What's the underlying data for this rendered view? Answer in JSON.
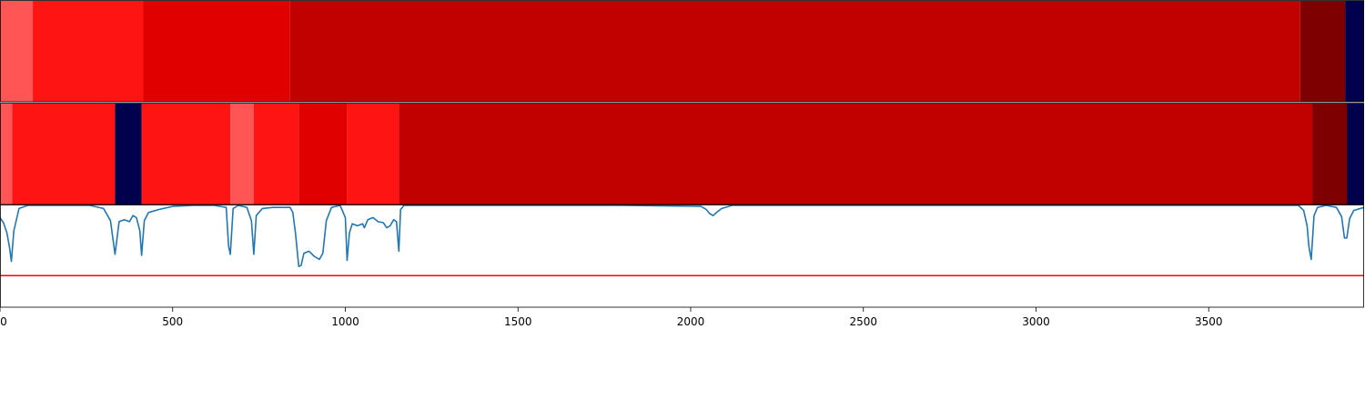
{
  "chart_data": [
    {
      "type": "heatmap",
      "xlim": [
        0,
        3950
      ],
      "segments": [
        {
          "start": 0,
          "end": 95,
          "color": "#ff5555"
        },
        {
          "start": 95,
          "end": 415,
          "color": "#ff1414"
        },
        {
          "start": 415,
          "end": 840,
          "color": "#e00000"
        },
        {
          "start": 840,
          "end": 3765,
          "color": "#c10000"
        },
        {
          "start": 3765,
          "end": 3895,
          "color": "#7f0000"
        },
        {
          "start": 3895,
          "end": 3950,
          "color": "#00004d"
        }
      ]
    },
    {
      "type": "heatmap",
      "xlim": [
        0,
        3950
      ],
      "segments": [
        {
          "start": 0,
          "end": 35,
          "color": "#ff5555"
        },
        {
          "start": 35,
          "end": 333,
          "color": "#ff1414"
        },
        {
          "start": 333,
          "end": 410,
          "color": "#00004d"
        },
        {
          "start": 410,
          "end": 667,
          "color": "#ff1414"
        },
        {
          "start": 667,
          "end": 735,
          "color": "#ff5555"
        },
        {
          "start": 735,
          "end": 865,
          "color": "#ff1414"
        },
        {
          "start": 865,
          "end": 1005,
          "color": "#e00000"
        },
        {
          "start": 1005,
          "end": 1155,
          "color": "#ff1414"
        },
        {
          "start": 1155,
          "end": 3800,
          "color": "#c10000"
        },
        {
          "start": 3800,
          "end": 3900,
          "color": "#7f0000"
        },
        {
          "start": 3900,
          "end": 3950,
          "color": "#00004d"
        }
      ]
    },
    {
      "type": "line",
      "xlim": [
        0,
        3950
      ],
      "ylim": [
        0,
        1
      ],
      "xticks": [
        0,
        500,
        1000,
        1500,
        2000,
        2500,
        3000,
        3500
      ],
      "threshold": {
        "y": 0.31,
        "color": "#ff0000"
      },
      "series": [
        {
          "color": "#1f77b4",
          "x": [
            0,
            10,
            20,
            28,
            33,
            40,
            55,
            80,
            150,
            260,
            300,
            320,
            333,
            345,
            360,
            375,
            385,
            395,
            405,
            410,
            418,
            430,
            460,
            500,
            560,
            620,
            655,
            662,
            667,
            675,
            690,
            715,
            728,
            735,
            742,
            760,
            790,
            840,
            848,
            856,
            865,
            872,
            880,
            895,
            910,
            925,
            935,
            945,
            960,
            985,
            1000,
            1005,
            1012,
            1020,
            1035,
            1050,
            1055,
            1065,
            1080,
            1095,
            1110,
            1120,
            1130,
            1140,
            1148,
            1155,
            1160,
            1170,
            1200,
            1400,
            1800,
            2030,
            2045,
            2055,
            2065,
            2075,
            2090,
            2120,
            2500,
            3000,
            3500,
            3760,
            3775,
            3785,
            3790,
            3797,
            3805,
            3815,
            3840,
            3870,
            3885,
            3893,
            3900,
            3908,
            3920,
            3950
          ],
          "y": [
            0.88,
            0.83,
            0.73,
            0.58,
            0.45,
            0.75,
            0.97,
            1.0,
            1.0,
            1.0,
            0.97,
            0.85,
            0.52,
            0.84,
            0.86,
            0.84,
            0.9,
            0.88,
            0.75,
            0.51,
            0.85,
            0.93,
            0.96,
            0.99,
            1.0,
            1.0,
            0.98,
            0.6,
            0.52,
            0.97,
            1.0,
            0.98,
            0.85,
            0.52,
            0.9,
            0.97,
            0.98,
            0.98,
            0.93,
            0.72,
            0.4,
            0.41,
            0.53,
            0.55,
            0.5,
            0.47,
            0.53,
            0.85,
            0.98,
            1.0,
            0.88,
            0.46,
            0.73,
            0.82,
            0.8,
            0.82,
            0.78,
            0.86,
            0.88,
            0.84,
            0.83,
            0.78,
            0.8,
            0.86,
            0.84,
            0.55,
            0.96,
            1.0,
            1.0,
            1.0,
            1.0,
            0.99,
            0.96,
            0.92,
            0.9,
            0.93,
            0.97,
            1.0,
            1.0,
            1.0,
            1.0,
            1.0,
            0.95,
            0.8,
            0.6,
            0.47,
            0.9,
            0.98,
            1.0,
            0.98,
            0.89,
            0.68,
            0.68,
            0.87,
            0.95,
            0.98
          ]
        }
      ]
    }
  ]
}
